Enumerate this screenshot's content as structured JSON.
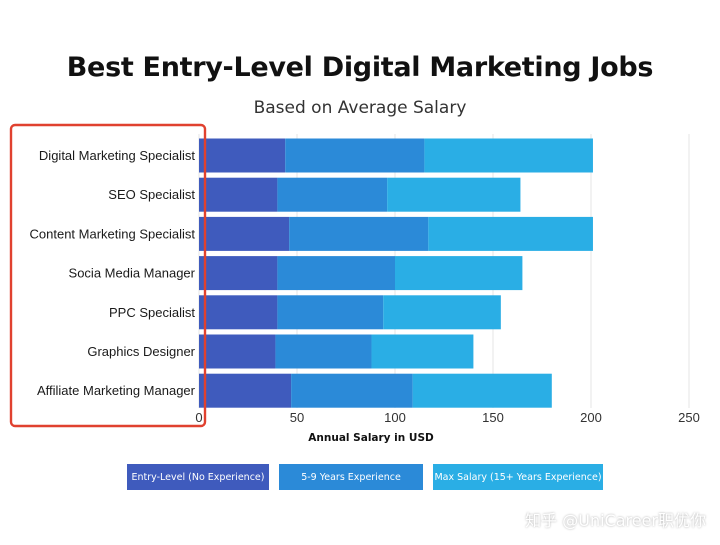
{
  "title": "Best Entry-Level Digital Marketing Jobs",
  "subtitle": "Based on Average Salary",
  "watermark": "知乎 @UniCareer职优你",
  "highlight_color": "#e0412f",
  "chart_data": {
    "type": "bar",
    "orientation": "horizontal",
    "stacked": true,
    "title": "Best Entry-Level Digital Marketing Jobs",
    "subtitle": "Based on Average Salary",
    "xlabel": "Annual Salary in USD",
    "ylabel": "",
    "xlim": [
      0,
      250
    ],
    "xticks": [
      0,
      50,
      100,
      150,
      200,
      250
    ],
    "grid": true,
    "legend_position": "bottom",
    "categories": [
      "Digital Marketing Specialist",
      "SEO Specialist",
      "Content Marketing Specialist",
      "Socia Media Manager",
      "PPC Specialist",
      "Graphics Designer",
      "Affiliate Marketing Manager"
    ],
    "series": [
      {
        "name": "Entry-Level (No Experience)",
        "color": "#3f5bbd",
        "values": [
          44,
          40,
          46,
          40,
          40,
          39,
          47
        ]
      },
      {
        "name": "5-9 Years Experience",
        "color": "#2b8ad8",
        "values": [
          71,
          56,
          71,
          60,
          54,
          49,
          62
        ]
      },
      {
        "name": "Max Salary (15+ Years Experience)",
        "color": "#2aaee5",
        "values": [
          86,
          68,
          84,
          65,
          60,
          52,
          71
        ]
      }
    ]
  }
}
